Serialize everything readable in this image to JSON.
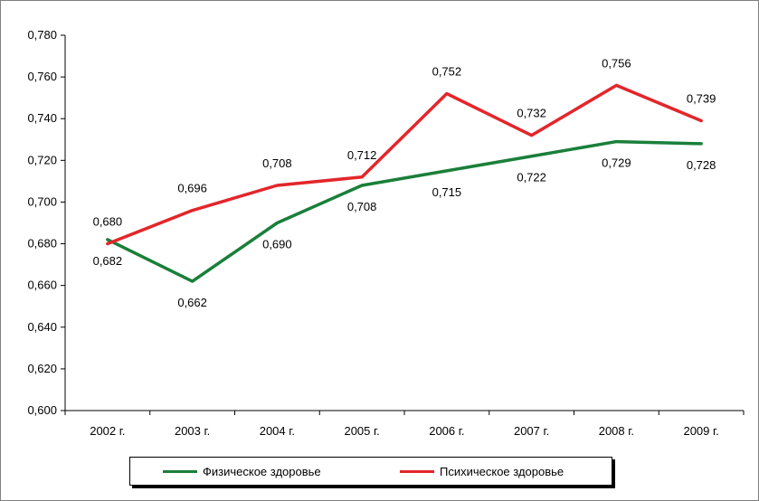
{
  "chart_data": {
    "type": "line",
    "categories": [
      "2002 г.",
      "2003 г.",
      "2004 г.",
      "2005 г.",
      "2006 г.",
      "2007 г.",
      "2008 г.",
      "2009 г."
    ],
    "ylim": [
      0.6,
      0.78
    ],
    "y_ticks": [
      "0,600",
      "0,620",
      "0,640",
      "0,660",
      "0,680",
      "0,700",
      "0,720",
      "0,740",
      "0,760",
      "0,780"
    ],
    "grid": false,
    "legend_position": "bottom",
    "series": [
      {
        "name": "Физическое здоровье",
        "color": "#1a7f3a",
        "values": [
          0.682,
          0.662,
          0.69,
          0.708,
          0.715,
          0.722,
          0.729,
          0.728
        ],
        "labels": [
          "0,682",
          "0,662",
          "0,690",
          "0,708",
          "0,715",
          "0,722",
          "0,729",
          "0,728"
        ],
        "label_position": "below"
      },
      {
        "name": "Психическое здоровье",
        "color": "#e3262a",
        "values": [
          0.68,
          0.696,
          0.708,
          0.712,
          0.752,
          0.732,
          0.756,
          0.739
        ],
        "labels": [
          "0,680",
          "0,696",
          "0,708",
          "0,712",
          "0,752",
          "0,732",
          "0,756",
          "0,739"
        ],
        "label_position": "above"
      }
    ]
  }
}
